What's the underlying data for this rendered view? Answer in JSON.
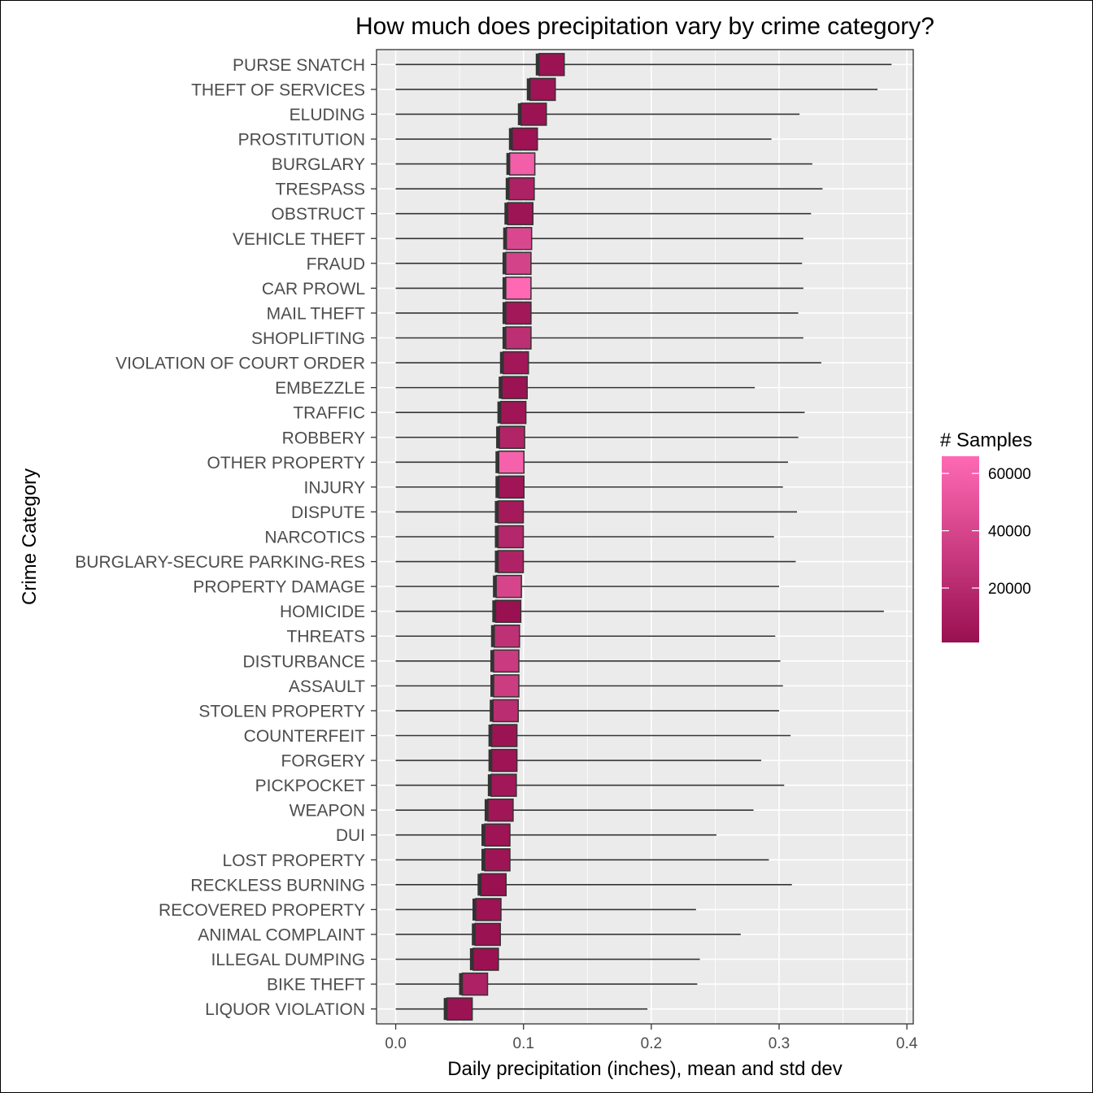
{
  "chart_data": {
    "type": "bar",
    "title": "How much does precipitation vary by crime category?",
    "xlabel": "Daily precipitation (inches), mean and std dev",
    "ylabel": "Crime Category",
    "xlim": [
      -0.015,
      0.405
    ],
    "x_ticks": [
      "0.0",
      "0.1",
      "0.2",
      "0.3",
      "0.4"
    ],
    "grid": true,
    "legend": {
      "title": "# Samples",
      "position": "right",
      "min": 1000,
      "max": 66000,
      "ticks": [
        20000,
        40000,
        60000
      ],
      "tick_labels": [
        "20000",
        "40000",
        "60000"
      ],
      "low_color": "#991050",
      "high_color": "#ff69b4"
    },
    "rows": [
      {
        "category": "PURSE SNATCH",
        "mean": 0.122,
        "upper": 0.388,
        "samples": 3000
      },
      {
        "category": "THEFT OF SERVICES",
        "mean": 0.115,
        "upper": 0.377,
        "samples": 4000
      },
      {
        "category": "ELUDING",
        "mean": 0.108,
        "upper": 0.316,
        "samples": 3000
      },
      {
        "category": "PROSTITUTION",
        "mean": 0.101,
        "upper": 0.294,
        "samples": 3500
      },
      {
        "category": "BURGLARY",
        "mean": 0.099,
        "upper": 0.326,
        "samples": 58000
      },
      {
        "category": "TRESPASS",
        "mean": 0.0985,
        "upper": 0.334,
        "samples": 14000
      },
      {
        "category": "OBSTRUCT",
        "mean": 0.0975,
        "upper": 0.325,
        "samples": 4500
      },
      {
        "category": "VEHICLE THEFT",
        "mean": 0.0965,
        "upper": 0.319,
        "samples": 42000
      },
      {
        "category": "FRAUD",
        "mean": 0.096,
        "upper": 0.318,
        "samples": 38000
      },
      {
        "category": "CAR PROWL",
        "mean": 0.096,
        "upper": 0.319,
        "samples": 66000
      },
      {
        "category": "MAIL THEFT",
        "mean": 0.096,
        "upper": 0.315,
        "samples": 7000
      },
      {
        "category": "SHOPLIFTING",
        "mean": 0.096,
        "upper": 0.319,
        "samples": 24000
      },
      {
        "category": "VIOLATION OF COURT ORDER",
        "mean": 0.094,
        "upper": 0.333,
        "samples": 6000
      },
      {
        "category": "EMBEZZLE",
        "mean": 0.093,
        "upper": 0.281,
        "samples": 3000
      },
      {
        "category": "TRAFFIC",
        "mean": 0.092,
        "upper": 0.32,
        "samples": 5000
      },
      {
        "category": "ROBBERY",
        "mean": 0.091,
        "upper": 0.315,
        "samples": 16000
      },
      {
        "category": "OTHER PROPERTY",
        "mean": 0.0905,
        "upper": 0.307,
        "samples": 60000
      },
      {
        "category": "INJURY",
        "mean": 0.0905,
        "upper": 0.303,
        "samples": 5000
      },
      {
        "category": "DISPUTE",
        "mean": 0.09,
        "upper": 0.314,
        "samples": 8000
      },
      {
        "category": "NARCOTICS",
        "mean": 0.09,
        "upper": 0.296,
        "samples": 18000
      },
      {
        "category": "BURGLARY-SECURE PARKING-RES",
        "mean": 0.09,
        "upper": 0.313,
        "samples": 15000
      },
      {
        "category": "PROPERTY DAMAGE",
        "mean": 0.0885,
        "upper": 0.3,
        "samples": 40000
      },
      {
        "category": "HOMICIDE",
        "mean": 0.088,
        "upper": 0.382,
        "samples": 1500
      },
      {
        "category": "THREATS",
        "mean": 0.087,
        "upper": 0.297,
        "samples": 25000
      },
      {
        "category": "DISTURBANCE",
        "mean": 0.0865,
        "upper": 0.301,
        "samples": 32000
      },
      {
        "category": "ASSAULT",
        "mean": 0.0865,
        "upper": 0.303,
        "samples": 33000
      },
      {
        "category": "STOLEN PROPERTY",
        "mean": 0.086,
        "upper": 0.3,
        "samples": 22000
      },
      {
        "category": "COUNTERFEIT",
        "mean": 0.085,
        "upper": 0.309,
        "samples": 3000
      },
      {
        "category": "FORGERY",
        "mean": 0.085,
        "upper": 0.286,
        "samples": 4000
      },
      {
        "category": "PICKPOCKET",
        "mean": 0.0845,
        "upper": 0.304,
        "samples": 6000
      },
      {
        "category": "WEAPON",
        "mean": 0.082,
        "upper": 0.28,
        "samples": 5500
      },
      {
        "category": "DUI",
        "mean": 0.0795,
        "upper": 0.251,
        "samples": 4000
      },
      {
        "category": "LOST PROPERTY",
        "mean": 0.0795,
        "upper": 0.292,
        "samples": 4500
      },
      {
        "category": "RECKLESS BURNING",
        "mean": 0.0765,
        "upper": 0.31,
        "samples": 1500
      },
      {
        "category": "RECOVERED PROPERTY",
        "mean": 0.0725,
        "upper": 0.235,
        "samples": 3500
      },
      {
        "category": "ANIMAL COMPLAINT",
        "mean": 0.072,
        "upper": 0.27,
        "samples": 2500
      },
      {
        "category": "ILLEGAL DUMPING",
        "mean": 0.0705,
        "upper": 0.238,
        "samples": 2000
      },
      {
        "category": "BIKE THEFT",
        "mean": 0.062,
        "upper": 0.236,
        "samples": 14000
      },
      {
        "category": "LIQUOR VIOLATION",
        "mean": 0.05,
        "upper": 0.197,
        "samples": 3000
      }
    ]
  }
}
